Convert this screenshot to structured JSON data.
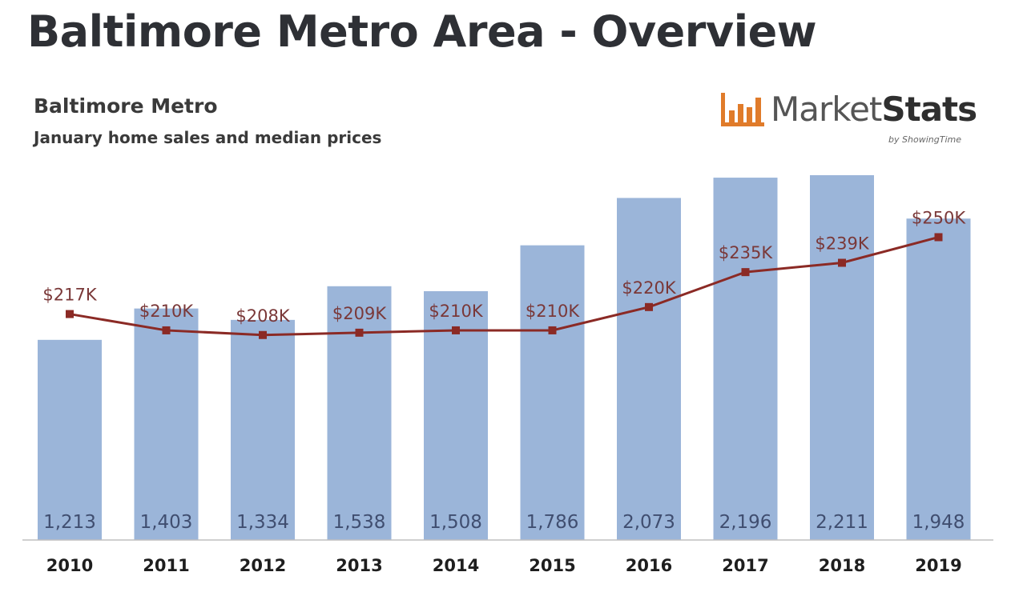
{
  "page": {
    "title": "Baltimore Metro Area - Overview"
  },
  "logo": {
    "text_market": "Market",
    "text_stats": "Stats",
    "byline": "by ShowingTime",
    "color": "#e07b2a"
  },
  "colors": {
    "bar": "#9bb5d9",
    "bar_label": "#404e70",
    "line": "#8b2a25",
    "price_label": "#7a3838",
    "axis": "#bfbfbf",
    "year_label": "#1e1e1e"
  },
  "chart_data": {
    "type": "bar",
    "title": "Baltimore Metro",
    "subtitle": "January home sales and median prices",
    "categories": [
      "2010",
      "2011",
      "2012",
      "2013",
      "2014",
      "2015",
      "2016",
      "2017",
      "2018",
      "2019"
    ],
    "series": [
      {
        "type": "bar",
        "values": [
          1213,
          1403,
          1334,
          1538,
          1508,
          1786,
          2073,
          2196,
          2211,
          1948
        ],
        "labels": [
          "1,213",
          "1,403",
          "1,334",
          "1,538",
          "1,508",
          "1,786",
          "2,073",
          "2,196",
          "2,211",
          "1,948"
        ]
      },
      {
        "type": "line",
        "values": [
          217,
          210,
          208,
          209,
          210,
          210,
          220,
          235,
          239,
          250
        ],
        "labels": [
          "$217K",
          "$210K",
          "$208K",
          "$209K",
          "$210K",
          "$210K",
          "$220K",
          "$235K",
          "$239K",
          "$250K"
        ]
      }
    ],
    "bar_ylim": [
      0,
      2400
    ],
    "line_ylim": [
      120,
      290
    ],
    "grid": false,
    "legend": "none"
  }
}
